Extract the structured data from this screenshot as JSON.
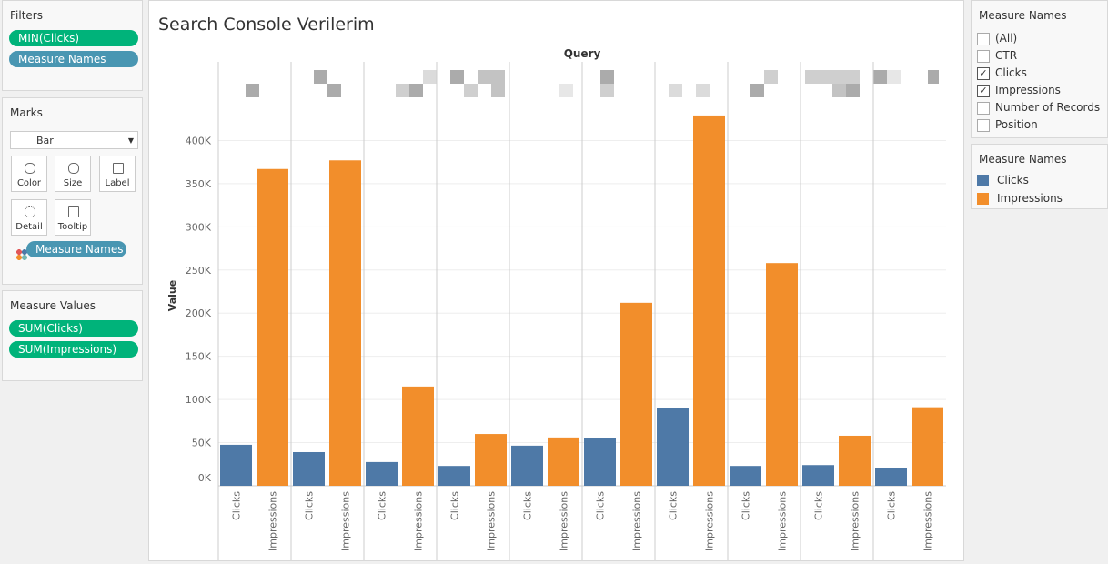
{
  "filters": {
    "title": "Filters",
    "pills": [
      "MIN(Clicks)",
      "Measure Names"
    ]
  },
  "marks": {
    "title": "Marks",
    "mark_type": "Bar",
    "buttons": [
      "Color",
      "Size",
      "Label",
      "Detail",
      "Tooltip"
    ],
    "pill": "Measure Names"
  },
  "measure_values": {
    "title": "Measure Values",
    "pills": [
      "SUM(Clicks)",
      "SUM(Impressions)"
    ]
  },
  "measure_filter": {
    "title": "Measure Names",
    "items": [
      {
        "label": "(All)",
        "checked": false
      },
      {
        "label": "CTR",
        "checked": false
      },
      {
        "label": "Clicks",
        "checked": true
      },
      {
        "label": "Impressions",
        "checked": true
      },
      {
        "label": "Number of Records",
        "checked": false
      },
      {
        "label": "Position",
        "checked": false
      }
    ]
  },
  "legend": {
    "title": "Measure Names"
  },
  "chart_data": {
    "type": "bar",
    "title": "Search Console Verilerim",
    "column_label": "Query",
    "y_label": "Value",
    "categories": [
      null,
      null,
      null,
      null,
      null,
      null,
      null,
      null,
      null,
      null
    ],
    "series": [
      {
        "name": "Clicks",
        "color": "#4e79a7",
        "values": [
          47500,
          39000,
          27500,
          23000,
          46500,
          55000,
          90000,
          23000,
          24000,
          21000
        ]
      },
      {
        "name": "Impressions",
        "color": "#f28e2b",
        "values": [
          367000,
          377000,
          115000,
          60000,
          56000,
          212000,
          429000,
          258000,
          58000,
          91000
        ]
      }
    ],
    "ylim": [
      0,
      450000
    ],
    "yticks": [
      {
        "value": 0,
        "label": "0K"
      },
      {
        "value": 50000,
        "label": "50K"
      },
      {
        "value": 100000,
        "label": "100K"
      },
      {
        "value": 150000,
        "label": "150K"
      },
      {
        "value": 200000,
        "label": "200K"
      },
      {
        "value": 250000,
        "label": "250K"
      },
      {
        "value": 300000,
        "label": "300K"
      },
      {
        "value": 350000,
        "label": "350K"
      },
      {
        "value": 400000,
        "label": "400K"
      }
    ],
    "grid": true
  }
}
